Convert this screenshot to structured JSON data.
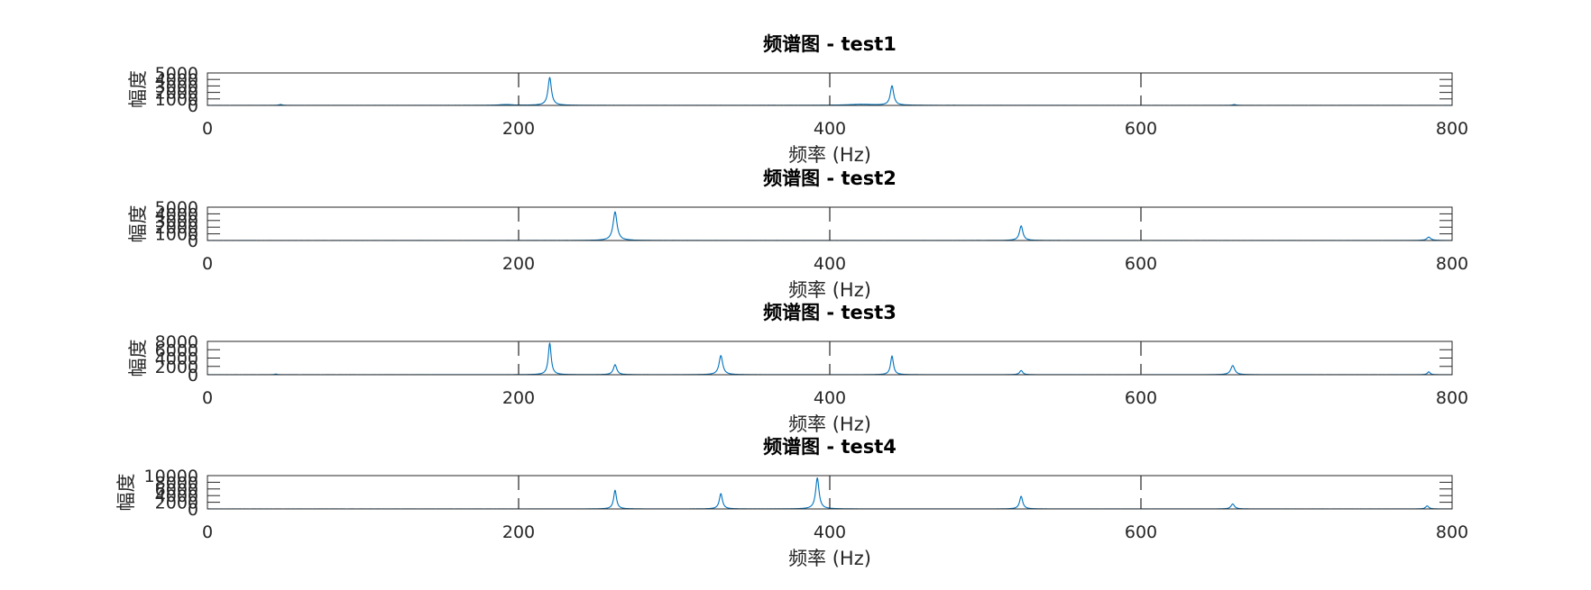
{
  "chart_data": [
    {
      "type": "line",
      "title": "频谱图 - test1",
      "xlabel": "频率 (Hz)",
      "ylabel": "幅度",
      "xlim": [
        0,
        800
      ],
      "ylim": [
        0,
        5000
      ],
      "xticks": [
        0,
        200,
        400,
        600,
        800
      ],
      "xtick_labels": [
        "0",
        "200",
        "400",
        "600",
        "800"
      ],
      "yticks": [
        0,
        1000,
        2000,
        3000,
        4000,
        5000
      ],
      "ytick_labels": [
        "0",
        "1000",
        "2000",
        "3000",
        "4000",
        "5000"
      ],
      "grid": "x-only, dashed",
      "color": "#0072bd",
      "peaks": [
        {
          "x": 47,
          "y": 130,
          "width": 1.2
        },
        {
          "x": 192,
          "y": 120,
          "width": 5
        },
        {
          "x": 220,
          "y": 4300,
          "width": 1.3
        },
        {
          "x": 420,
          "y": 150,
          "width": 10
        },
        {
          "x": 440,
          "y": 3000,
          "width": 1.3
        },
        {
          "x": 660,
          "y": 120,
          "width": 1.2
        }
      ]
    },
    {
      "type": "line",
      "title": "频谱图 - test2",
      "xlabel": "频率 (Hz)",
      "ylabel": "幅度",
      "xlim": [
        0,
        800
      ],
      "ylim": [
        0,
        5000
      ],
      "xticks": [
        0,
        200,
        400,
        600,
        800
      ],
      "xtick_labels": [
        "0",
        "200",
        "400",
        "600",
        "800"
      ],
      "yticks": [
        0,
        1000,
        2000,
        3000,
        4000,
        5000
      ],
      "ytick_labels": [
        "0",
        "1000",
        "2000",
        "3000",
        "4000",
        "5000"
      ],
      "grid": "x-only, dashed",
      "color": "#0072bd",
      "peaks": [
        {
          "x": 262,
          "y": 4300,
          "width": 1.5
        },
        {
          "x": 523,
          "y": 2200,
          "width": 1.3
        },
        {
          "x": 785,
          "y": 500,
          "width": 1.5
        }
      ]
    },
    {
      "type": "line",
      "title": "频谱图 - test3",
      "xlabel": "频率 (Hz)",
      "ylabel": "幅度",
      "xlim": [
        0,
        800
      ],
      "ylim": [
        0,
        8000
      ],
      "xticks": [
        0,
        200,
        400,
        600,
        800
      ],
      "xtick_labels": [
        "0",
        "200",
        "400",
        "600",
        "800"
      ],
      "yticks": [
        0,
        2000,
        4000,
        6000,
        8000
      ],
      "ytick_labels": [
        "0",
        "2000",
        "4000",
        "6000",
        "8000"
      ],
      "grid": "x-only, dashed",
      "color": "#0072bd",
      "peaks": [
        {
          "x": 44,
          "y": 150,
          "width": 1
        },
        {
          "x": 220,
          "y": 7600,
          "width": 1.1
        },
        {
          "x": 262,
          "y": 2400,
          "width": 1.3
        },
        {
          "x": 330,
          "y": 4600,
          "width": 1.4
        },
        {
          "x": 440,
          "y": 4500,
          "width": 1.1
        },
        {
          "x": 523,
          "y": 1000,
          "width": 1.2
        },
        {
          "x": 659,
          "y": 2200,
          "width": 1.5
        },
        {
          "x": 785,
          "y": 700,
          "width": 1
        }
      ]
    },
    {
      "type": "line",
      "title": "频谱图 - test4",
      "xlabel": "频率 (Hz)",
      "ylabel": "幅度",
      "xlim": [
        0,
        800
      ],
      "ylim": [
        0,
        10000
      ],
      "xticks": [
        0,
        200,
        400,
        600,
        800
      ],
      "xtick_labels": [
        "0",
        "200",
        "400",
        "600",
        "800"
      ],
      "yticks": [
        0,
        2000,
        4000,
        6000,
        8000,
        10000
      ],
      "ytick_labels": [
        "0",
        "2000",
        "4000",
        "6000",
        "8000",
        "10000"
      ],
      "grid": "x-only, dashed",
      "color": "#0072bd",
      "peaks": [
        {
          "x": 262,
          "y": 5600,
          "width": 1.1
        },
        {
          "x": 330,
          "y": 4600,
          "width": 1.2
        },
        {
          "x": 392,
          "y": 9300,
          "width": 1.3
        },
        {
          "x": 523,
          "y": 3800,
          "width": 1.2
        },
        {
          "x": 659,
          "y": 1500,
          "width": 1.3
        },
        {
          "x": 784,
          "y": 900,
          "width": 1.2
        }
      ]
    }
  ]
}
